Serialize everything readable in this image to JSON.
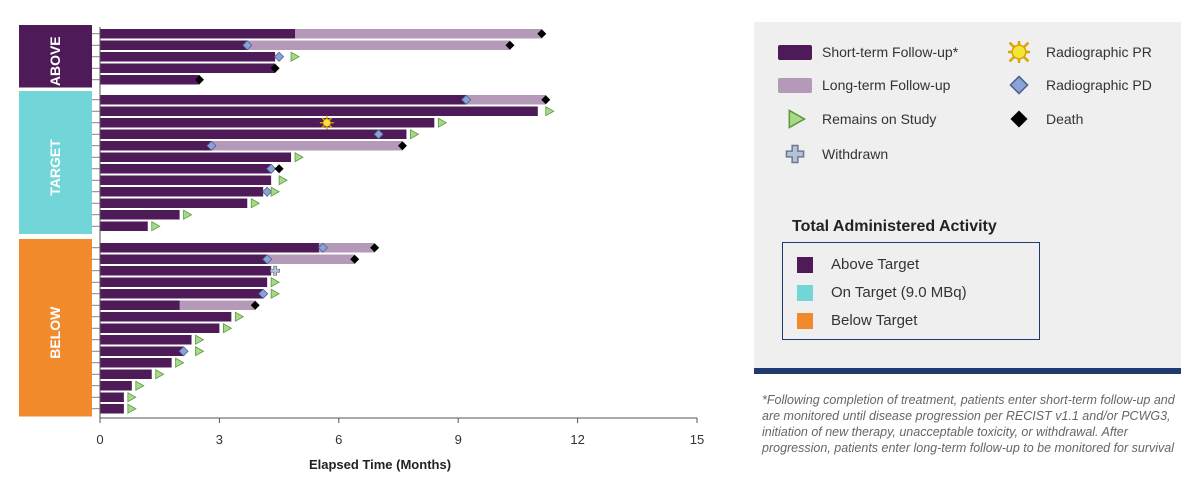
{
  "chart_data": {
    "type": "swimmer",
    "xlabel": "Elapsed Time (Months)",
    "xlim": [
      0,
      15
    ],
    "xticks": [
      0,
      3,
      6,
      9,
      12,
      15
    ],
    "groups": [
      {
        "name": "ABOVE",
        "color": "#4e1a57",
        "patients": [
          {
            "short": 4.9,
            "long": 11.1,
            "end": "death",
            "end_x": 11.1
          },
          {
            "short": 3.7,
            "long": 10.3,
            "pd": 3.7,
            "end": "death",
            "end_x": 10.3
          },
          {
            "short": 4.4,
            "pd": 4.5,
            "end": "remains",
            "end_x": 4.8
          },
          {
            "short": 4.4,
            "end": "death",
            "end_x": 4.4
          },
          {
            "short": 2.5,
            "end": "death",
            "end_x": 2.5
          }
        ]
      },
      {
        "name": "TARGET",
        "color": "#72d6d8",
        "patients": [
          {
            "short": 9.2,
            "long": 11.2,
            "pd": 9.2,
            "end": "death",
            "end_x": 11.2
          },
          {
            "short": 11.0,
            "end": "remains",
            "end_x": 11.2
          },
          {
            "short": 8.4,
            "pr": 5.7,
            "end": "remains",
            "end_x": 8.5
          },
          {
            "short": 7.7,
            "pd": 7.0,
            "end": "remains",
            "end_x": 7.8
          },
          {
            "short": 2.8,
            "long": 7.6,
            "pd": 2.8,
            "end": "death",
            "end_x": 7.6
          },
          {
            "short": 4.8,
            "end": "remains",
            "end_x": 4.9
          },
          {
            "short": 4.3,
            "pd": 4.3,
            "end": "death",
            "end_x": 4.5
          },
          {
            "short": 4.3,
            "end": "remains",
            "end_x": 4.5
          },
          {
            "short": 4.1,
            "pd": 4.2,
            "end": "remains",
            "end_x": 4.3
          },
          {
            "short": 3.7,
            "end": "remains",
            "end_x": 3.8
          },
          {
            "short": 2.0,
            "end": "remains",
            "end_x": 2.1
          },
          {
            "short": 1.2,
            "end": "remains",
            "end_x": 1.3
          }
        ]
      },
      {
        "name": "BELOW",
        "color": "#f08a2c",
        "patients": [
          {
            "short": 5.5,
            "long": 6.9,
            "pd": 5.6,
            "end": "death",
            "end_x": 6.9
          },
          {
            "short": 4.2,
            "long": 6.4,
            "pd": 4.2,
            "end": "death",
            "end_x": 6.4
          },
          {
            "short": 4.3,
            "end": "withdrawn",
            "end_x": 4.4
          },
          {
            "short": 4.2,
            "end": "remains",
            "end_x": 4.3
          },
          {
            "short": 4.1,
            "pd": 4.1,
            "end": "remains",
            "end_x": 4.3
          },
          {
            "short": 2.0,
            "long": 3.9,
            "end": "death",
            "end_x": 3.9
          },
          {
            "short": 3.3,
            "end": "remains",
            "end_x": 3.4
          },
          {
            "short": 3.0,
            "end": "remains",
            "end_x": 3.1
          },
          {
            "short": 2.3,
            "end": "remains",
            "end_x": 2.4
          },
          {
            "short": 2.1,
            "pd": 2.1,
            "end": "remains",
            "end_x": 2.4
          },
          {
            "short": 1.8,
            "end": "remains",
            "end_x": 1.9
          },
          {
            "short": 1.3,
            "end": "remains",
            "end_x": 1.4
          },
          {
            "short": 0.8,
            "end": "remains",
            "end_x": 0.9
          },
          {
            "short": 0.6,
            "end": "remains",
            "end_x": 0.7
          },
          {
            "short": 0.6,
            "end": "remains",
            "end_x": 0.7
          }
        ]
      }
    ],
    "colors": {
      "short_term": "#4e1a57",
      "long_term": "#b49ab8",
      "remains": "#a9d88a",
      "pr": "#f5e43a",
      "pd": "#8aa2d6",
      "death": "#000000",
      "withdrawn": "#b8c2d6"
    }
  },
  "legend": {
    "items": [
      {
        "key": "short",
        "label": "Short-term Follow-up*"
      },
      {
        "key": "pr",
        "label": "Radiographic PR"
      },
      {
        "key": "long",
        "label": "Long-term Follow-up"
      },
      {
        "key": "pd",
        "label": "Radiographic PD"
      },
      {
        "key": "remains",
        "label": "Remains on Study"
      },
      {
        "key": "death",
        "label": "Death"
      },
      {
        "key": "withdrawn",
        "label": "Withdrawn"
      }
    ]
  },
  "activity": {
    "title": "Total Administered Activity",
    "items": [
      {
        "label": "Above Target",
        "color": "#4e1a57"
      },
      {
        "label": "On Target (9.0 MBq)",
        "color": "#72d6d8"
      },
      {
        "label": "Below Target",
        "color": "#f08a2c"
      }
    ]
  },
  "footnote": "*Following completion of treatment, patients enter short-term follow-up and are monitored until disease progression per RECIST v1.1 and/or PCWG3, initiation of new therapy, unacceptable toxicity, or withdrawal. After progression, patients enter long-term follow-up to be monitored for survival"
}
